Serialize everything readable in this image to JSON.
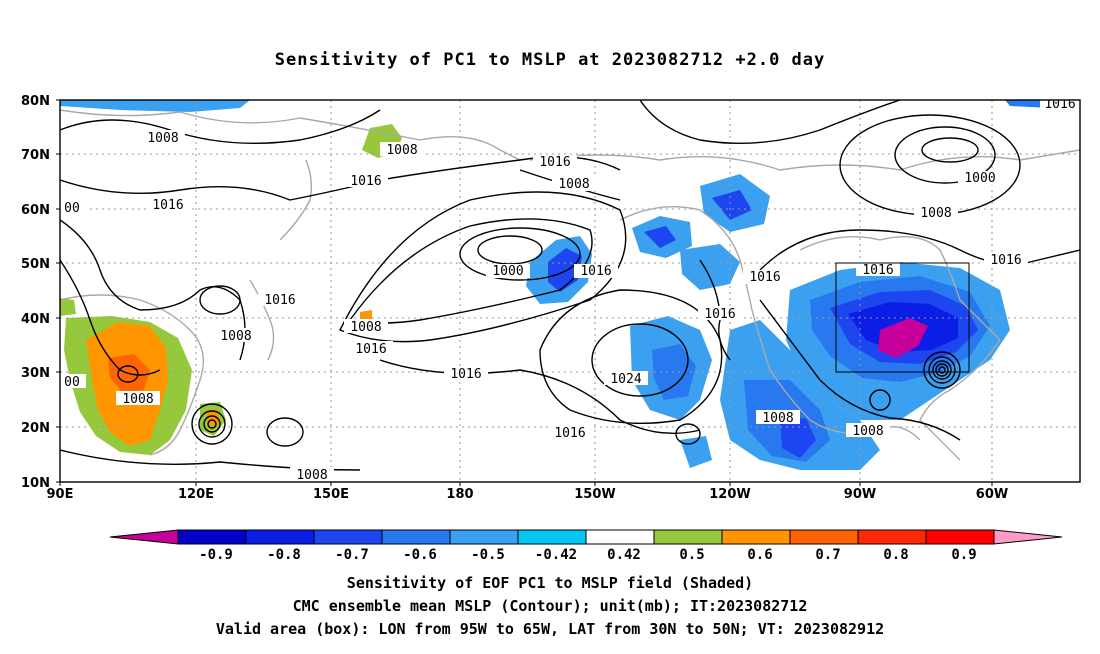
{
  "title": "Sensitivity of PC1 to MSLP at 2023082712 +2.0 day",
  "map": {
    "lat_labels": [
      "80N",
      "70N",
      "60N",
      "50N",
      "40N",
      "30N",
      "20N",
      "10N"
    ],
    "lon_labels": [
      "90E",
      "120E",
      "150E",
      "180",
      "150W",
      "120W",
      "90W",
      "60W"
    ],
    "contour_labels": [
      "1008",
      "1008",
      "1016",
      "1016",
      "1008",
      "1016",
      "1000",
      "1016",
      "1016",
      "1008",
      "1008",
      "1000",
      "1008",
      "1016",
      "1016",
      "1016",
      "1016",
      "1024",
      "1016",
      "1008",
      "1008",
      "1008",
      "1016",
      "1016",
      "1016",
      "1008",
      "00",
      "1008"
    ],
    "valid_box": {
      "lon_from": "95W",
      "lon_to": "65W",
      "lat_from": "30N",
      "lat_to": "50N"
    }
  },
  "colorbar": {
    "labels": [
      "-0.9",
      "-0.8",
      "-0.7",
      "-0.6",
      "-0.5",
      "-0.42",
      "0.42",
      "0.5",
      "0.6",
      "0.7",
      "0.8",
      "0.9"
    ],
    "colors": [
      "#c7009c",
      "#0000c8",
      "#0a1ee6",
      "#1e46f0",
      "#2878f0",
      "#3ca0f0",
      "#00c8f0",
      "#ffffff",
      "#96c83c",
      "#ff9600",
      "#ff6400",
      "#ff2800",
      "#ff0000",
      "#ff9bc8"
    ]
  },
  "caption": {
    "line1": "Sensitivity of EOF PC1 to MSLP field (Shaded)",
    "line2": "CMC ensemble mean MSLP (Contour); unit(mb); IT:2023082712",
    "line3": "Valid area (box): LON from 95W to 65W, LAT from 30N to 50N; VT: 2023082912"
  }
}
